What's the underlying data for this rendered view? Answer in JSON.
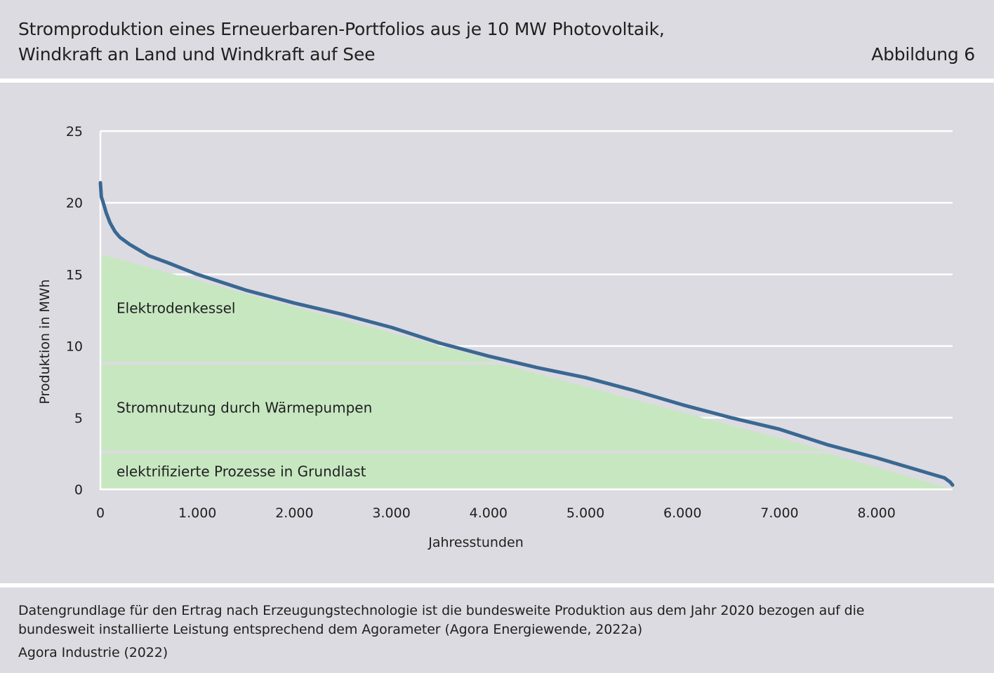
{
  "header": {
    "title_line1": "Stromproduktion eines Erneuerbaren-Portfolios aus je 10 MW Photovoltaik,",
    "title_line2": "Windkraft an Land und Windkraft auf See",
    "figure_label": "Abbildung 6"
  },
  "footer": {
    "note_line1": "Datengrundlage für den Ertrag nach Erzeugungstechnologie ist die bundesweite Produktion aus dem Jahr 2020 bezogen auf die",
    "note_line2": "bundesweit installierte Leistung entsprechend dem Agorameter (Agora Energiewende, 2022a)",
    "source": "Agora Industrie (2022)"
  },
  "colors": {
    "line": "#3a6892",
    "area": "#c7e7c1",
    "grid": "#ffffff",
    "background": "#dcdbe1"
  },
  "chart_data": {
    "type": "line",
    "xlabel": "Jahresstunden",
    "ylabel": "Produktion in MWh",
    "xlim": [
      0,
      8784
    ],
    "ylim": [
      0,
      25
    ],
    "x_ticks": [
      0,
      1000,
      2000,
      3000,
      4000,
      5000,
      6000,
      7000,
      8000
    ],
    "x_tick_labels": [
      "0",
      "1.000",
      "2.000",
      "3.000",
      "4.000",
      "5.000",
      "6.000",
      "7.000",
      "8.000"
    ],
    "y_ticks": [
      0,
      5,
      10,
      15,
      20,
      25
    ],
    "y_tick_labels": [
      "0",
      "5",
      "10",
      "15",
      "20",
      "25"
    ],
    "grid": true,
    "legend": "none",
    "series": [
      {
        "x": [
          0,
          10,
          30,
          60,
          100,
          150,
          200,
          300,
          400,
          500,
          700,
          1000,
          1500,
          2000,
          2500,
          3000,
          3500,
          4000,
          4500,
          5000,
          5500,
          6000,
          6500,
          7000,
          7500,
          8000,
          8400,
          8600,
          8700,
          8760,
          8784
        ],
        "y": [
          21.4,
          20.4,
          20.0,
          19.3,
          18.6,
          18.0,
          17.6,
          17.1,
          16.7,
          16.3,
          15.8,
          15.0,
          13.9,
          13.0,
          12.2,
          11.3,
          10.2,
          9.3,
          8.5,
          7.8,
          6.9,
          5.9,
          5.0,
          4.2,
          3.1,
          2.2,
          1.4,
          1.0,
          0.8,
          0.5,
          0.3
        ]
      }
    ],
    "areas": [
      {
        "label": "elektrifizierte Prozesse in Grundlast",
        "bottom": 0,
        "top": 2.5,
        "edge": {
          "x": [
            7500,
            8784
          ],
          "y": [
            2.5,
            0
          ]
        }
      },
      {
        "label": "Stromnutzung durch Wärmepumpen",
        "bottom": 2.7,
        "top": 8.7,
        "edge": {
          "x": [
            4150,
            7480
          ],
          "y": [
            8.7,
            2.7
          ]
        }
      },
      {
        "label": "Elektrodenkessel",
        "bottom": 8.9,
        "top": 16.4,
        "edge": {
          "x": [
            0,
            4100
          ],
          "y": [
            16.4,
            8.9
          ]
        }
      }
    ]
  }
}
